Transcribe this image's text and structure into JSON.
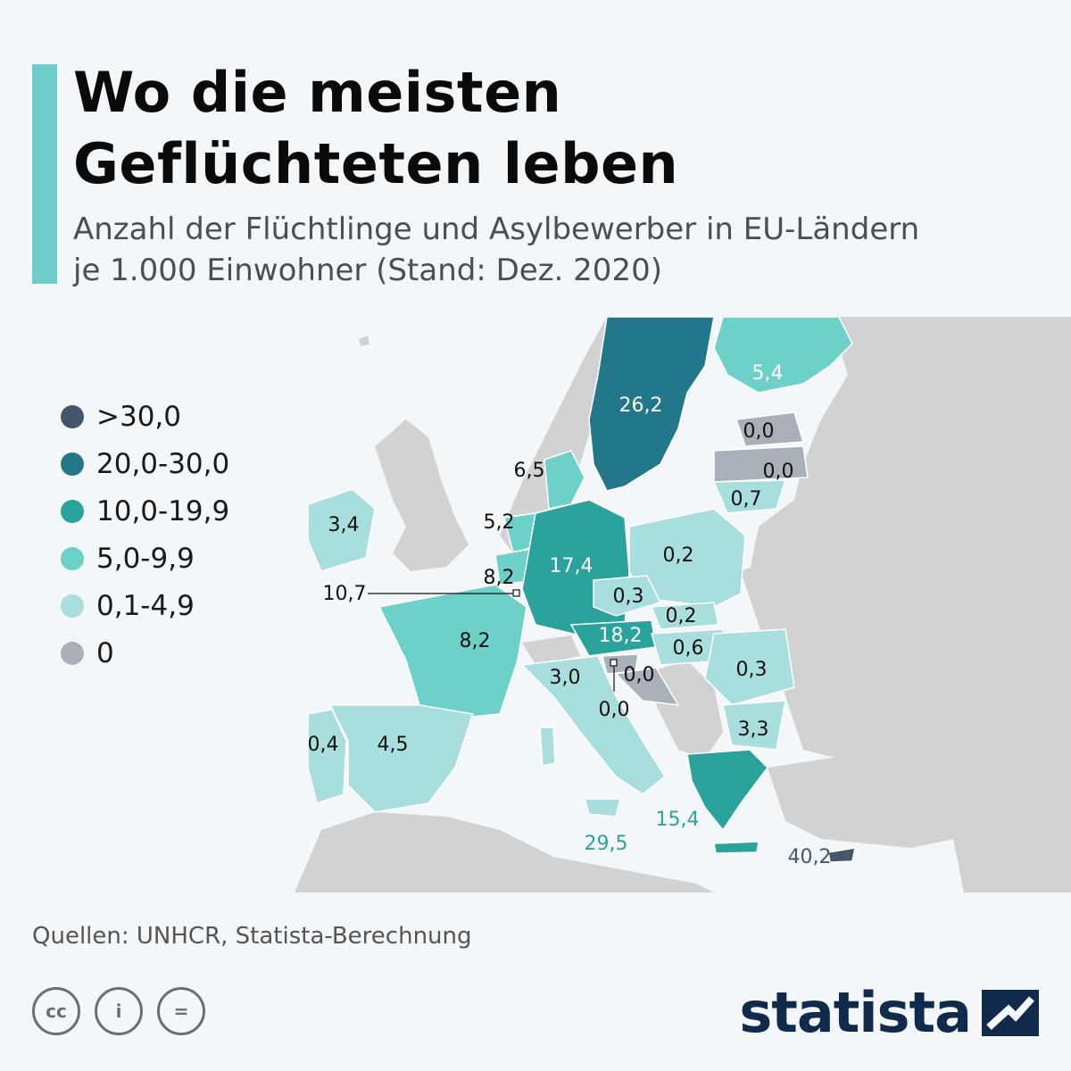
{
  "header": {
    "title_line1": "Wo die meisten",
    "title_line2": "Geflüchteten leben",
    "subtitle_line1": "Anzahl der Flüchtlinge und Asylbewerber in EU-Ländern",
    "subtitle_line2": "je 1.000 Einwohner (Stand: Dez. 2020)"
  },
  "legend": {
    "items": [
      {
        "label": ">30,0",
        "color": "#44566b"
      },
      {
        "label": "20,0-30,0",
        "color": "#23778a"
      },
      {
        "label": "10,0-19,9",
        "color": "#2aa39d"
      },
      {
        "label": "5,0-9,9",
        "color": "#6dd0c9"
      },
      {
        "label": "0,1-4,9",
        "color": "#a8dedd"
      },
      {
        "label": "0",
        "color": "#a9b0b9"
      }
    ]
  },
  "countries": {
    "sweden": "26,2",
    "finland": "5,4",
    "estonia": "0,0",
    "latvia": "0,0",
    "lithuania": "0,7",
    "denmark": "6,5",
    "ireland": "3,4",
    "netherlands": "5,2",
    "belgium": "8,2",
    "luxembourg": "10,7",
    "germany": "17,4",
    "poland": "0,2",
    "czechia": "0,3",
    "slovakia": "0,2",
    "austria": "18,2",
    "hungary": "0,6",
    "slovenia": "0,0",
    "croatia": "0,0",
    "romania": "0,3",
    "bulgaria": "3,3",
    "france": "8,2",
    "italy": "3,0",
    "spain": "4,5",
    "portugal": "0,4",
    "greece": "15,4",
    "malta": "29,5",
    "cyprus": "40,2"
  },
  "footer": {
    "source": "Quellen: UNHCR, Statista-Berechnung",
    "cc_labels": [
      "cc",
      "i",
      "="
    ],
    "brand": "statista"
  },
  "colors": {
    "accent": "#6ecdc8",
    "land_other": "#d2d2d2",
    "sea": "#f3f7fa"
  }
}
